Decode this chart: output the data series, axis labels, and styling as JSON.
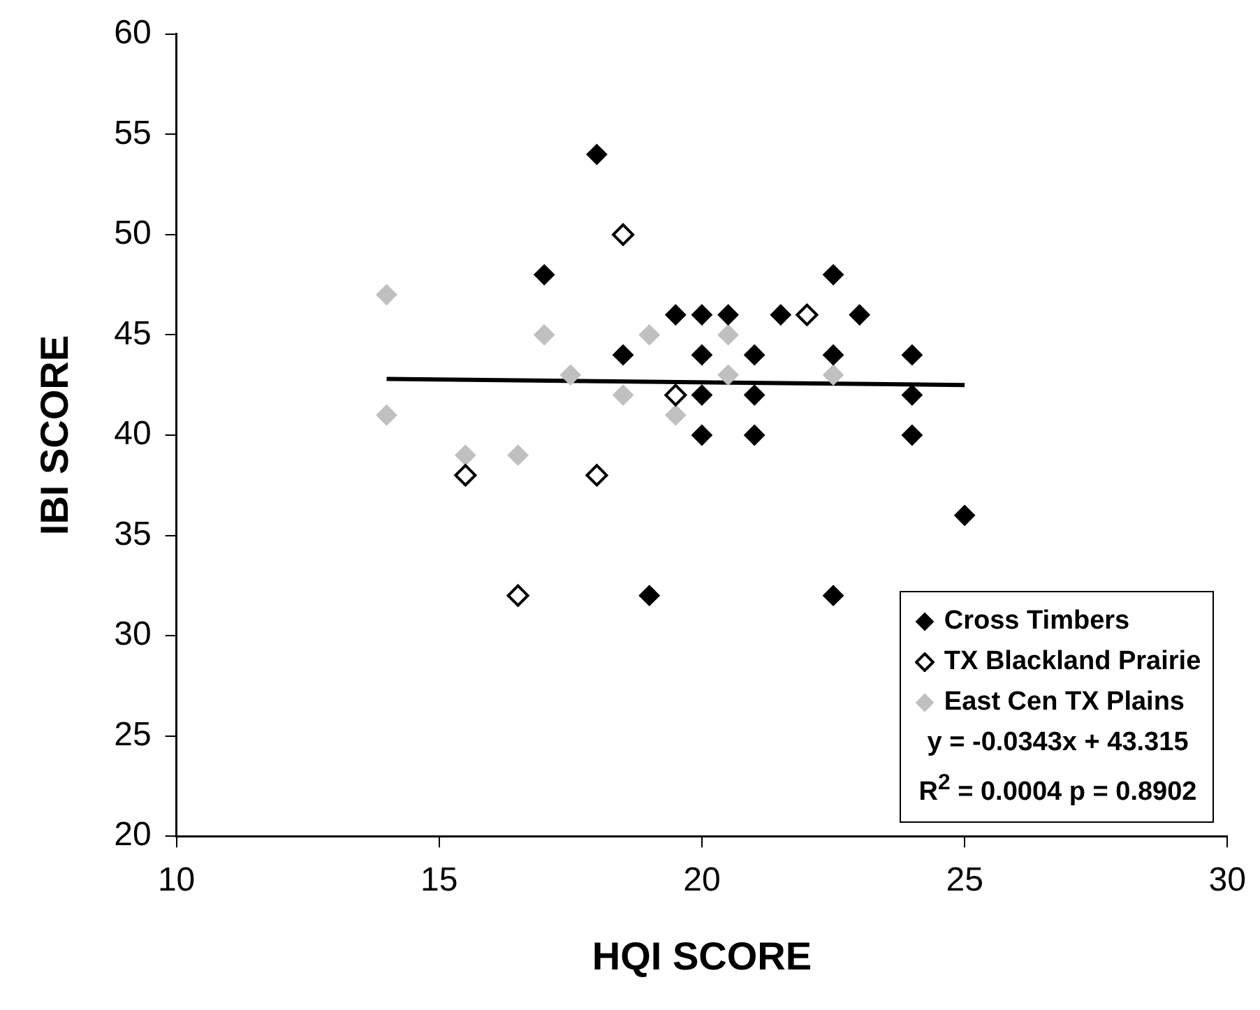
{
  "chart_data": {
    "type": "scatter",
    "xlabel": "HQI SCORE",
    "ylabel": "IBI SCORE",
    "xlim": [
      10,
      30
    ],
    "xticks": [
      10,
      15,
      20,
      25,
      30
    ],
    "ylim": [
      20,
      60
    ],
    "yticks": [
      20,
      25,
      30,
      35,
      40,
      45,
      50,
      55,
      60
    ],
    "grid": false,
    "legend": "bottom right",
    "marker": "diamond",
    "series": [
      {
        "name": "Cross Timbers",
        "color": "#000000",
        "x": [
          18,
          17,
          18.5,
          19,
          19.5,
          20,
          20.5,
          21.5,
          23,
          20,
          21,
          22.5,
          24,
          20,
          21,
          24,
          20,
          21,
          24,
          22.5,
          25,
          22.5
        ],
        "values": [
          54,
          48,
          44,
          32,
          46,
          46,
          46,
          46,
          46,
          44,
          44,
          44,
          44,
          42,
          42,
          42,
          40,
          40,
          40,
          48,
          36,
          32
        ]
      },
      {
        "name": "TX Blackland Prairie",
        "color": "#000000",
        "x": [
          18.5,
          19.5,
          15.5,
          18,
          16.5,
          22
        ],
        "values": [
          50,
          42,
          38,
          38,
          32,
          46
        ]
      },
      {
        "name": "East Cen TX Plains",
        "color": "#c0c0c0",
        "x": [
          14,
          14,
          17,
          19,
          17.5,
          18.5,
          19.5,
          15.5,
          16.5,
          20.5,
          20.5,
          22.5
        ],
        "values": [
          47,
          41,
          45,
          45,
          43,
          42,
          41,
          39,
          39,
          45,
          43,
          43
        ]
      },
      {
        "type": "line",
        "marker": "none",
        "color": "#000000",
        "x": [
          14,
          25
        ],
        "values": [
          42.8,
          42.5
        ]
      }
    ],
    "annotations": [
      "y = -0.0343x + 43.315",
      "R$^{2}$ = 0.0004 p = 0.8902"
    ]
  }
}
